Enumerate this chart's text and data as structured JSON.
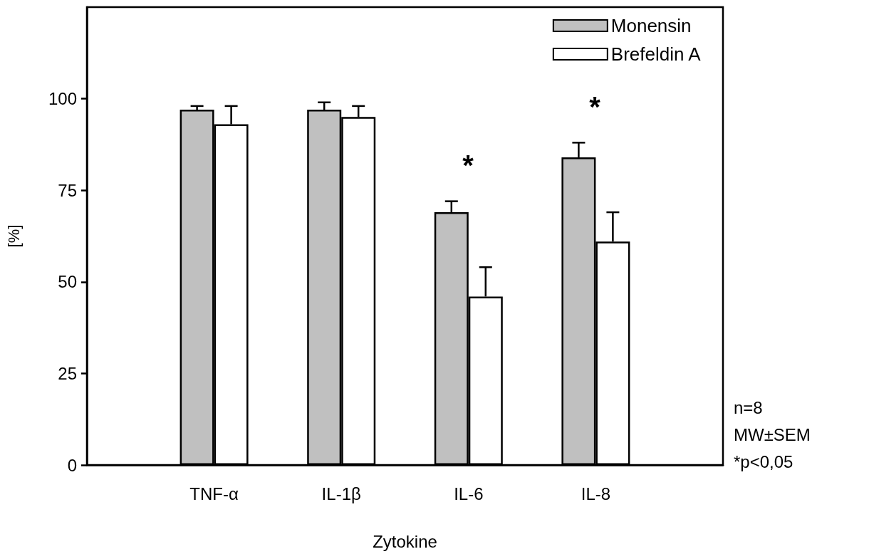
{
  "chart_data": {
    "type": "bar",
    "xlabel": "Zytokine",
    "ylabel": "[%]",
    "categories": [
      null,
      "TNF-α",
      "IL-1β",
      "IL-6",
      "IL-8",
      null
    ],
    "series": [
      {
        "name": "Monensin",
        "color": "#c0c0c0",
        "values": [
          null,
          97,
          97,
          69,
          84,
          null
        ],
        "errors": [
          null,
          [
            97,
            98
          ],
          [
            97,
            99
          ],
          [
            69,
            72
          ],
          [
            84,
            88
          ],
          null
        ]
      },
      {
        "name": "Brefeldin A",
        "color": "#ffffff",
        "values": [
          null,
          93,
          95,
          46,
          61,
          null
        ],
        "errors": [
          null,
          [
            93,
            98
          ],
          [
            95,
            98
          ],
          [
            46,
            54
          ],
          [
            61,
            69
          ],
          null
        ]
      }
    ],
    "ylim": [
      0,
      125
    ],
    "yticks": [
      0,
      25,
      50,
      75,
      100
    ],
    "grid": false,
    "legend": "top right",
    "annotations": [
      "*",
      "*",
      "n=8",
      "MW±SEM",
      "*p<0,05"
    ]
  }
}
